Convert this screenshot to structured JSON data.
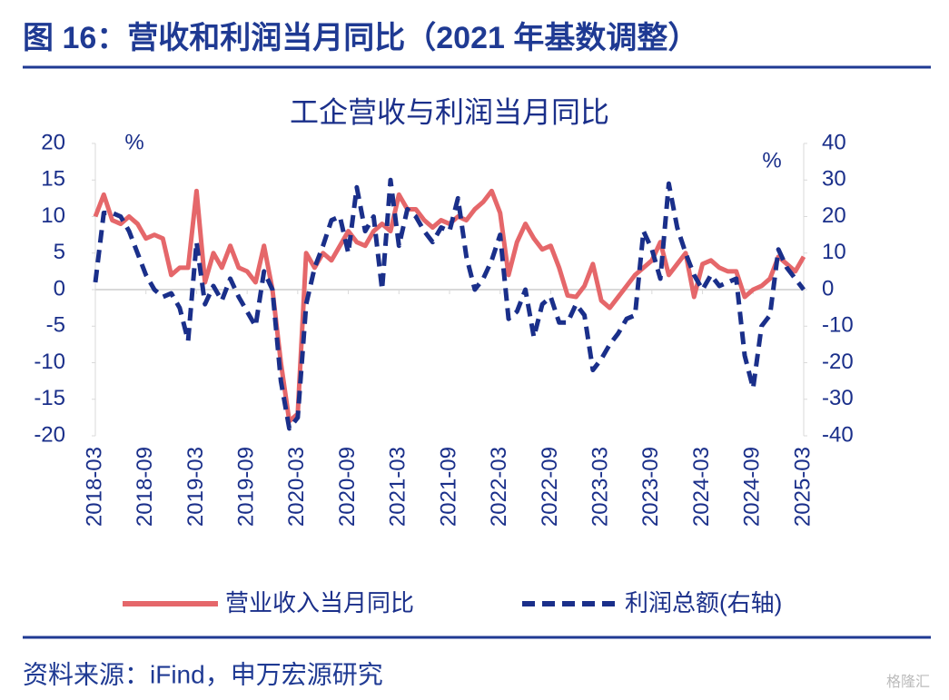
{
  "header": {
    "title": "图 16：营收和利润当月同比（2021 年基数调整）"
  },
  "chart_data": {
    "type": "line",
    "title": "工企营收与利润当月同比",
    "y_unit": "%",
    "y2_unit": "%",
    "categories": [
      "2018-03",
      null,
      null,
      null,
      null,
      null,
      "2018-09",
      null,
      null,
      null,
      null,
      null,
      "2019-03",
      null,
      null,
      null,
      null,
      null,
      "2019-09",
      null,
      null,
      null,
      null,
      null,
      "2020-03",
      null,
      null,
      null,
      null,
      null,
      "2020-09",
      null,
      null,
      null,
      null,
      null,
      "2021-03",
      null,
      null,
      null,
      null,
      null,
      "2021-09",
      null,
      null,
      null,
      null,
      null,
      "2022-03",
      null,
      null,
      null,
      null,
      null,
      "2022-09",
      null,
      null,
      null,
      null,
      null,
      "2023-03",
      null,
      null,
      null,
      null,
      null,
      "2023-09",
      null,
      null,
      null,
      null,
      null,
      "2024-03",
      null,
      null,
      null,
      null,
      null,
      "2024-09",
      null,
      null,
      null,
      null,
      null,
      "2025-03"
    ],
    "series": [
      {
        "name": "营业收入当月同比",
        "color": "#e5676a",
        "dashed": false,
        "values": [
          10,
          13,
          9.5,
          9,
          10,
          9,
          7,
          7.5,
          7,
          2,
          3,
          3,
          13.5,
          1,
          5,
          3,
          6,
          3,
          2.5,
          1,
          6,
          0,
          -10,
          -18,
          -17,
          5,
          3,
          5,
          4,
          6,
          8,
          6.5,
          6,
          8,
          9,
          8,
          13,
          11,
          11,
          9.5,
          8.5,
          9.5,
          9,
          10,
          9.5,
          11,
          12,
          13.5,
          10.5,
          2,
          6.5,
          9,
          7,
          5.5,
          6,
          3,
          -0.8,
          -1,
          0.5,
          3.5,
          -1.5,
          -2.5,
          -1,
          0.5,
          2,
          3,
          4,
          6.5,
          2,
          3.5,
          5,
          -1,
          3.5,
          4,
          3,
          2.5,
          2.5,
          -1,
          0,
          0.5,
          1.5,
          4.5,
          3.5,
          2.5,
          4.5
        ]
      },
      {
        "name": "利润总额(右轴)",
        "color": "#1a2f8a",
        "dashed": true,
        "axis": "y2",
        "values": [
          2,
          21,
          21,
          20,
          16,
          10,
          4,
          0,
          -2,
          -1,
          -5,
          -14,
          13,
          -4,
          1,
          -3,
          3,
          -2,
          -6,
          -10,
          5,
          0,
          -25,
          -38,
          -35,
          -4,
          6,
          12,
          19,
          20,
          10,
          28,
          16,
          20,
          0,
          30,
          12,
          22,
          20,
          16,
          13,
          17,
          16,
          25,
          9,
          0,
          3,
          8,
          15,
          -8,
          -6,
          0,
          -13,
          -4,
          -2,
          -9,
          -9,
          -4,
          -7,
          -22,
          -19,
          -15,
          -12,
          -8,
          -7,
          16,
          11,
          3,
          29,
          17,
          10,
          4,
          0,
          4,
          1,
          2,
          3,
          -18,
          -27,
          -10,
          -7,
          11,
          6,
          3,
          0
        ]
      }
    ],
    "ylim": [
      -20,
      20
    ],
    "yticks": [
      -20,
      -15,
      -10,
      -5,
      0,
      5,
      10,
      15,
      20
    ],
    "y2lim": [
      -40,
      40
    ],
    "y2ticks": [
      -40,
      -30,
      -20,
      -10,
      0,
      10,
      20,
      30,
      40
    ],
    "grid": false,
    "legend": "bottom"
  },
  "footer": {
    "source": "资料来源：iFind，申万宏源研究",
    "watermark": "格隆汇"
  }
}
